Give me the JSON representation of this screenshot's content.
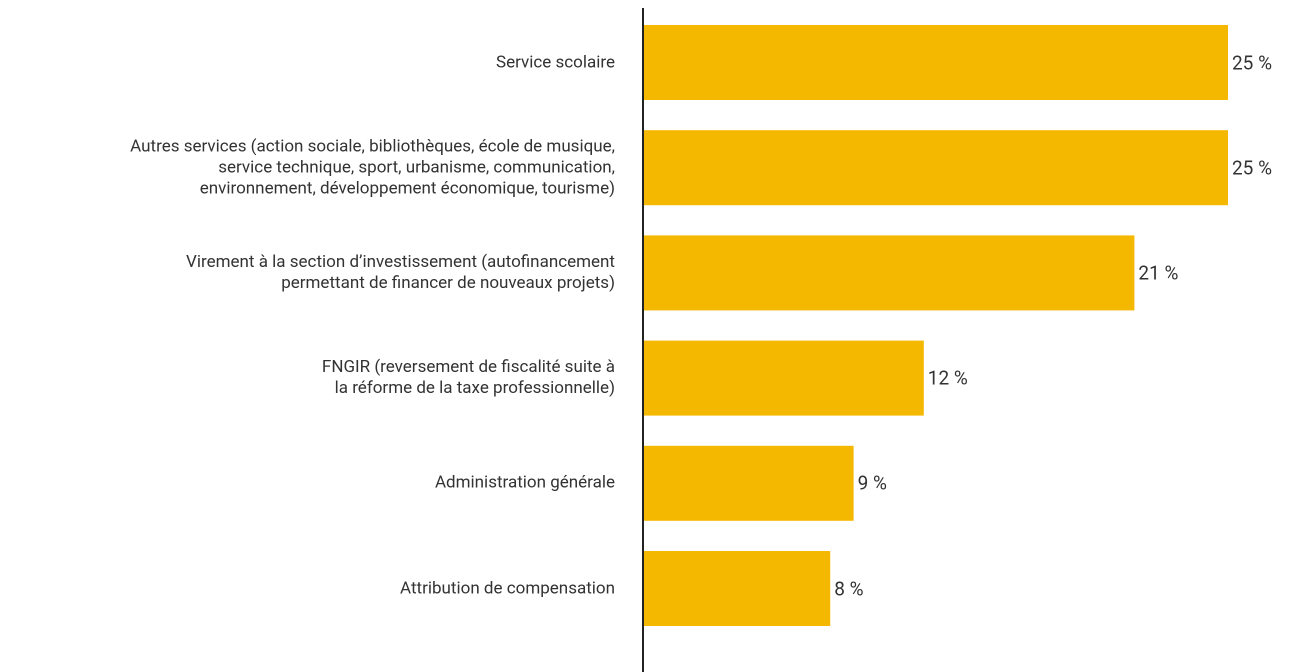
{
  "chart_data": {
    "type": "barh",
    "categories": [
      "Service scolaire",
      "Autres services (action sociale, bibliothèques, école de musique,\nservice technique, sport, urbanisme, communication,\nenvironnement, développement économique, tourisme)",
      "Virement à la section d’investissement (autofinancement\npermettant de financer de nouveaux projets)",
      "FNGIR (reversement de fiscalité suite à\nla réforme de la taxe professionnelle)",
      "Administration générale",
      "Attribution de compensation"
    ],
    "values": [
      25,
      25,
      21,
      12,
      9,
      8
    ],
    "value_labels": [
      "25 %",
      "25 %",
      "21 %",
      "12 %",
      "9 %",
      "8 %"
    ],
    "color": "#f5b800",
    "xlim": [
      0,
      25
    ]
  }
}
